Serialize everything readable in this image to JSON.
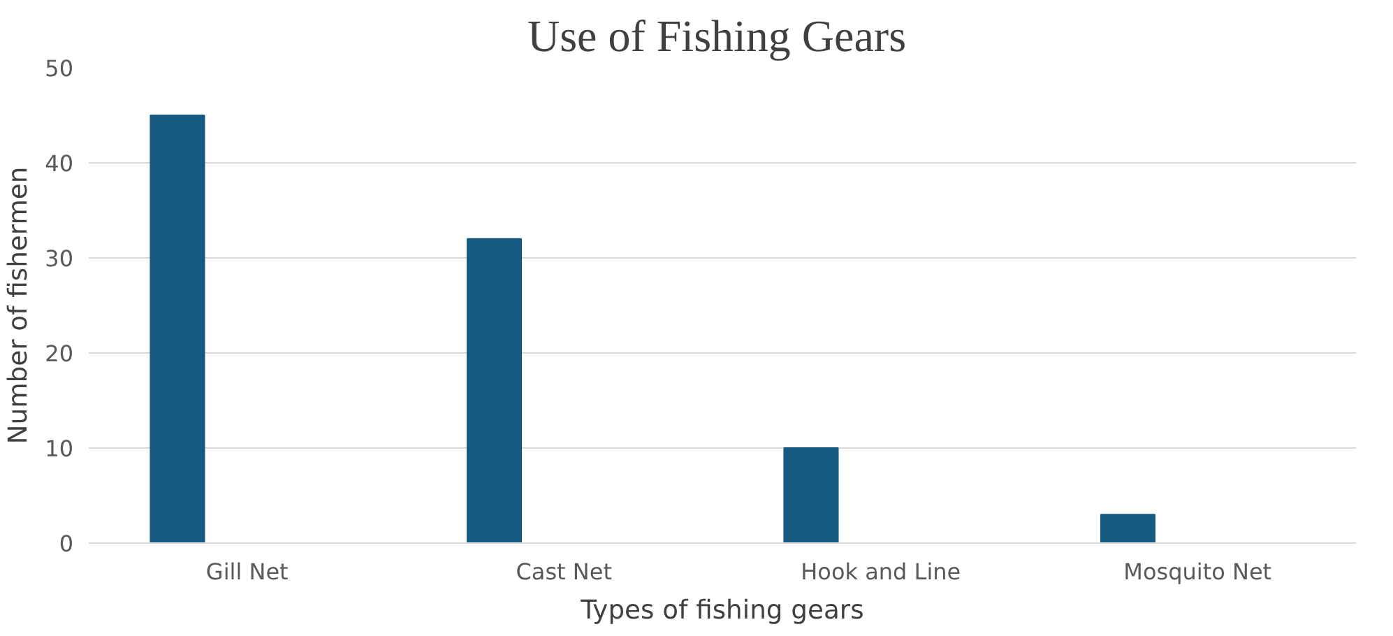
{
  "chart_data": {
    "type": "bar",
    "title": "Use of Fishing  Gears",
    "xlabel": "Types of fishing gears",
    "ylabel": "Number of fishermen",
    "categories": [
      "Gill Net",
      "Cast Net",
      "Hook and Line",
      "Mosquito Net"
    ],
    "values": [
      45,
      32,
      10,
      3
    ],
    "color": "#165a82",
    "ylim": [
      0,
      50
    ],
    "yticks": [
      0,
      10,
      20,
      30,
      40,
      50
    ],
    "grid": "y"
  }
}
